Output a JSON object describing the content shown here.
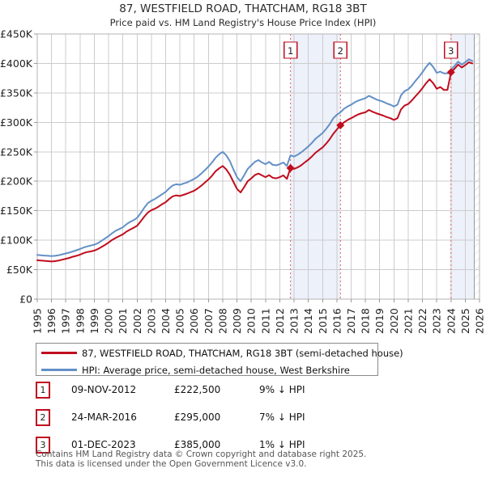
{
  "title": "87, WESTFIELD ROAD, THATCHAM, RG18 3BT",
  "subtitle": "Price paid vs. HM Land Registry's House Price Index (HPI)",
  "chart_data": {
    "type": "line",
    "x_axis_years": [
      1995,
      1996,
      1997,
      1998,
      1999,
      2000,
      2001,
      2002,
      2003,
      2004,
      2005,
      2006,
      2007,
      2008,
      2009,
      2010,
      2011,
      2012,
      2013,
      2014,
      2015,
      2016,
      2017,
      2018,
      2019,
      2020,
      2021,
      2022,
      2023,
      2024,
      2025,
      2026
    ],
    "x_start": 1995,
    "x_step": 0.25,
    "xlim": [
      1995,
      2026
    ],
    "ylim_gbp_k": [
      0,
      450
    ],
    "y_unit": "GBP thousands",
    "y_tick_labels": [
      "£0",
      "£50K",
      "£100K",
      "£150K",
      "£200K",
      "£250K",
      "£300K",
      "£350K",
      "£400K",
      "£450K"
    ],
    "grid": true,
    "legend_position": "below",
    "series": [
      {
        "name": "87, WESTFIELD ROAD, THATCHAM, RG18 3BT (semi-detached house)",
        "color": "#c00d1e",
        "values_gbp_k": [
          66,
          65.5,
          65,
          64.5,
          64,
          64.5,
          65.5,
          67,
          68.5,
          70,
          72,
          73.5,
          75.5,
          78,
          80,
          81,
          82.5,
          85,
          88.5,
          92,
          96,
          100.5,
          104,
          107,
          110,
          114.5,
          118,
          121,
          124.5,
          132,
          140,
          147,
          151,
          153.5,
          157,
          161,
          164.5,
          170,
          174.5,
          176,
          175,
          177,
          179,
          181.5,
          184,
          188,
          192.5,
          198,
          203,
          209.5,
          217,
          222,
          226,
          220,
          211,
          199,
          187,
          181,
          190,
          200,
          205,
          210.5,
          213,
          210,
          207,
          210.5,
          206,
          205,
          207,
          210,
          204,
          222.5,
          221,
          223.5,
          227,
          232,
          236.5,
          242,
          248.5,
          253,
          257.5,
          264,
          271.5,
          280.5,
          288,
          295,
          300,
          304,
          307,
          310.5,
          313.5,
          315.5,
          317,
          321,
          318,
          315.5,
          313.5,
          311.5,
          309,
          307,
          304,
          307,
          322,
          328.5,
          331,
          337,
          344,
          350.5,
          358,
          366.5,
          373,
          366.5,
          357,
          360,
          355,
          355,
          385,
          391,
          398,
          393,
          397,
          402,
          400
        ]
      },
      {
        "name": "HPI: Average price, semi-detached house, West Berkshire",
        "color": "#6390c6",
        "values_gbp_k": [
          75,
          74.5,
          74,
          73.5,
          73,
          73.5,
          74.5,
          76,
          77.5,
          79,
          81,
          83,
          85,
          87.5,
          89.5,
          91,
          92.5,
          95,
          99,
          103,
          107,
          112,
          116,
          119,
          122,
          127,
          131,
          134,
          138,
          146,
          155,
          163,
          167,
          170,
          174,
          178,
          182,
          188,
          193,
          195,
          194,
          196,
          198,
          201,
          204,
          208,
          213,
          219,
          225,
          232,
          240,
          246,
          250,
          244,
          234,
          220,
          207,
          200,
          210,
          221,
          227,
          233,
          236,
          232,
          229,
          233,
          228,
          227,
          229,
          232,
          226,
          244,
          242,
          245,
          249,
          254,
          259,
          265,
          272,
          277,
          282,
          289,
          297,
          307,
          313,
          317,
          323,
          327,
          330,
          334,
          337,
          339,
          341,
          345,
          342,
          339,
          337,
          335,
          332,
          330,
          327,
          330,
          346,
          353,
          356,
          362,
          370,
          377,
          385,
          394,
          401,
          394,
          384,
          386,
          383,
          383,
          389,
          396,
          403,
          398,
          402,
          407,
          404
        ]
      }
    ],
    "sale_markers": [
      {
        "label": "1",
        "x": 2012.75,
        "value_gbp_k": 222.5
      },
      {
        "label": "2",
        "x": 2016.25,
        "value_gbp_k": 295
      },
      {
        "label": "3",
        "x": 2024.0,
        "value_gbp_k": 385
      }
    ],
    "ownership_bands": [
      [
        2012.75,
        2016.25
      ],
      [
        2024.0,
        2025.62
      ]
    ],
    "future_hatch": [
      2025.62,
      2026
    ],
    "colors": {
      "band": "#edf1fa",
      "grid": "#cccccc",
      "plot_border": "#b3b3b3",
      "sale_dotted_line": "#e05c5c",
      "data_end_line": "#999999",
      "hatch_line": "#c9cdd6",
      "axis_text": "#222222"
    }
  },
  "legend": {
    "items": [
      {
        "label": "87, WESTFIELD ROAD, THATCHAM, RG18 3BT (semi-detached house)",
        "color": "#c00d1e"
      },
      {
        "label": "HPI: Average price, semi-detached house, West Berkshire",
        "color": "#6390c6"
      }
    ]
  },
  "transactions": [
    {
      "num": "1",
      "date": "09-NOV-2012",
      "price": "£222,500",
      "hpi_diff": "9% ↓ HPI"
    },
    {
      "num": "2",
      "date": "24-MAR-2016",
      "price": "£295,000",
      "hpi_diff": "7% ↓ HPI"
    },
    {
      "num": "3",
      "date": "01-DEC-2023",
      "price": "£385,000",
      "hpi_diff": "1% ↓ HPI"
    }
  ],
  "footer": {
    "line1": "Contains HM Land Registry data © Crown copyright and database right 2025.",
    "line2": "This data is licensed under the Open Government Licence v3.0."
  }
}
